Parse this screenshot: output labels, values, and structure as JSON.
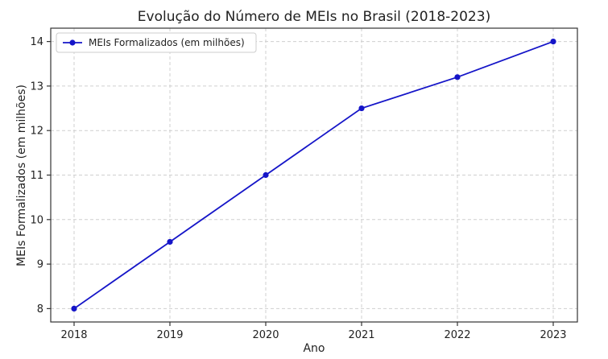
{
  "chart_data": {
    "type": "line",
    "title": "Evolução do Número de MEIs no Brasil (2018-2023)",
    "xlabel": "Ano",
    "ylabel": "MEIs Formalizados (em milhões)",
    "categories": [
      "2018",
      "2019",
      "2020",
      "2021",
      "2022",
      "2023"
    ],
    "series": [
      {
        "name": "MEIs Formalizados (em milhões)",
        "values": [
          8,
          9.5,
          11,
          12.5,
          13.2,
          14
        ],
        "color": "#1515c8",
        "marker": "circle"
      }
    ],
    "yticks": [
      8,
      9,
      10,
      11,
      12,
      13,
      14
    ],
    "ylim": [
      7.7,
      14.3
    ],
    "grid": true,
    "legend": "top-left"
  }
}
